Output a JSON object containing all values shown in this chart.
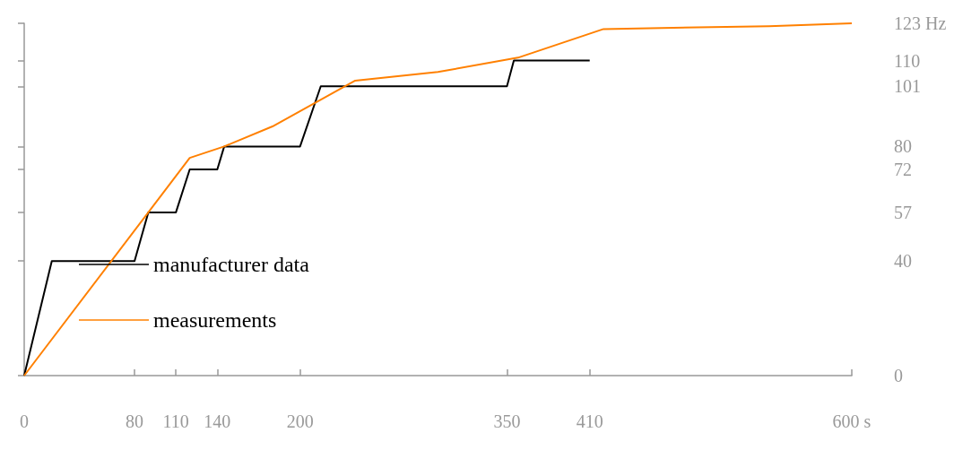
{
  "chart_data": {
    "type": "line",
    "series": [
      {
        "name": "manufacturer data",
        "color": "#000000",
        "x": [
          0,
          20,
          80,
          90,
          110,
          120,
          140,
          145,
          200,
          215,
          350,
          355,
          410
        ],
        "values": [
          0,
          40,
          40,
          57,
          57,
          72,
          72,
          80,
          80,
          101,
          101,
          110,
          110
        ]
      },
      {
        "name": "measurements",
        "color": "#ff8000",
        "x": [
          0,
          90,
          120,
          145,
          180,
          240,
          300,
          358,
          420,
          540,
          600
        ],
        "values": [
          0,
          57,
          76,
          80,
          87,
          103,
          106,
          111,
          121,
          122,
          123
        ]
      }
    ],
    "xlim": [
      0,
      600
    ],
    "xticks": [
      0,
      80,
      110,
      140,
      200,
      350,
      410,
      {
        "value": 600,
        "label": "600 s"
      }
    ],
    "ylim": [
      0,
      123
    ],
    "yticks": [
      0,
      40,
      57,
      72,
      80,
      101,
      110,
      {
        "value": 123,
        "label": "123 Hz"
      }
    ],
    "legend": "left",
    "grid": false,
    "marker": "none",
    "line_style": "solid"
  }
}
